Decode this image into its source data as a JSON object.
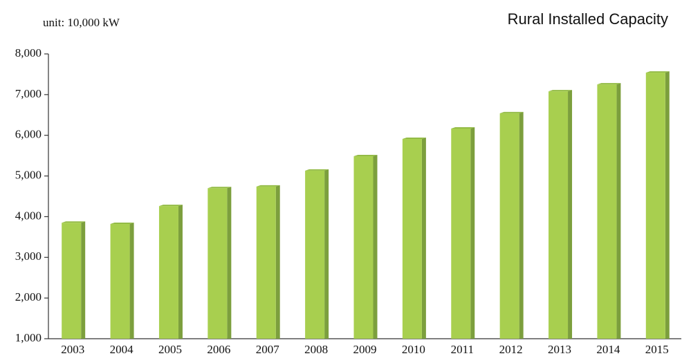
{
  "chart_data": {
    "type": "bar",
    "title": "Rural Installed Capacity",
    "unit_label": "unit: 10,000 kW",
    "categories": [
      "2003",
      "2004",
      "2005",
      "2006",
      "2007",
      "2008",
      "2009",
      "2010",
      "2011",
      "2012",
      "2013",
      "2014",
      "2015"
    ],
    "values": [
      3850,
      3820,
      4260,
      4700,
      4740,
      5130,
      5485,
      5910,
      6165,
      6540,
      7080,
      7250,
      7540
    ],
    "color": "#a8cf4f",
    "side_color": "#7c9f3d",
    "top_color": "#93bb45",
    "ylim": [
      1000,
      8000
    ],
    "yticks": [
      {
        "value": 1000,
        "label": "1,000"
      },
      {
        "value": 2000,
        "label": "2,000"
      },
      {
        "value": 3000,
        "label": "3,000"
      },
      {
        "value": 4000,
        "label": "4,000"
      },
      {
        "value": 5000,
        "label": "5,000"
      },
      {
        "value": 6000,
        "label": "6,000"
      },
      {
        "value": 7000,
        "label": "7,000"
      },
      {
        "value": 8000,
        "label": "8,000"
      }
    ],
    "grid": false
  }
}
